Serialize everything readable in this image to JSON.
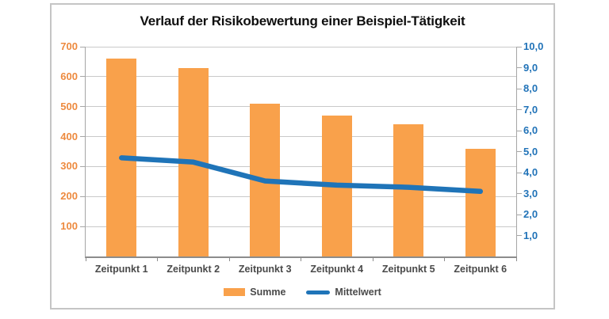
{
  "chart_data": {
    "type": "bar+line",
    "title": "Verlauf der Risikobewertung einer Beispiel-Tätigkeit",
    "categories": [
      "Zeitpunkt 1",
      "Zeitpunkt 2",
      "Zeitpunkt 3",
      "Zeitpunkt 4",
      "Zeitpunkt 5",
      "Zeitpunkt 6"
    ],
    "series": [
      {
        "name": "Summe",
        "type": "bar",
        "axis": "left",
        "color": "#F9A14B",
        "values": [
          660,
          630,
          510,
          470,
          440,
          360
        ]
      },
      {
        "name": "Mittelwert",
        "type": "line",
        "axis": "right",
        "color": "#1F74B8",
        "values": [
          4.7,
          4.5,
          3.6,
          3.4,
          3.3,
          3.1
        ]
      }
    ],
    "left_axis": {
      "min": 0,
      "max": 700,
      "step": 100,
      "labels": [
        "100",
        "200",
        "300",
        "400",
        "500",
        "600",
        "700"
      ],
      "color": "#ED8A3F"
    },
    "right_axis": {
      "min": 0,
      "max": 10,
      "step": 1,
      "labels": [
        "1,0",
        "2,0",
        "3,0",
        "4,0",
        "5,0",
        "6,0",
        "7,0",
        "8,0",
        "9,0",
        "10,0"
      ],
      "color": "#2173B8"
    },
    "grid": true,
    "legend_position": "bottom"
  },
  "colors": {
    "gridline": "#C9C9C9",
    "side_axis": "#A6A6A6",
    "bottom_axis": "#8C8C8C",
    "category_text": "#4A4A4A",
    "title_text": "#0F0F0F",
    "frame_border": "#C5C5C5",
    "background": "#FFFFFF"
  }
}
